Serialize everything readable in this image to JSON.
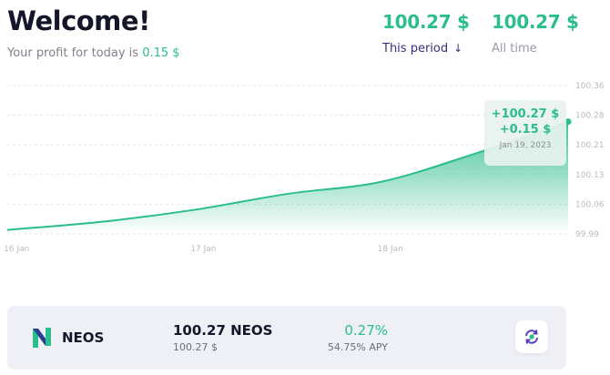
{
  "header": {
    "title": "Welcome!",
    "subtitle_prefix": "Your profit for today is",
    "subtitle_value": "0.15 $"
  },
  "stats": {
    "period_value": "100.27 $",
    "period_label": "This period",
    "period_icon": "arrow-down-icon",
    "alltime_value": "100.27 $",
    "alltime_label": "All time"
  },
  "tooltip": {
    "total": "+100.27 $",
    "delta": "+0.15 $",
    "date": "Jan 19, 2023"
  },
  "chart_data": {
    "type": "area",
    "x": [
      "16 Jan",
      "16.5 Jan",
      "17 Jan",
      "17.5 Jan",
      "18 Jan",
      "18.5 Jan",
      "19 Jan"
    ],
    "y": [
      100.0,
      100.02,
      100.05,
      100.09,
      100.12,
      100.19,
      100.27
    ],
    "xlabels": [
      "16 Jan",
      "17 Jan",
      "18 Jan"
    ],
    "yticks": [
      "100.36",
      "100.28",
      "100.21",
      "100.13",
      "100.06",
      "99.99"
    ],
    "ylim": [
      99.99,
      100.36
    ],
    "grid": true,
    "color": "#2bbd8b"
  },
  "asset": {
    "name": "NEOS",
    "logo_icon": "neos-logo-icon",
    "balance": "100.27 NEOS",
    "balance_usd": "100.27 $",
    "change": "0.27%",
    "apy": "54.75% APY",
    "action_icon": "swap-icon"
  },
  "colors": {
    "accent": "#2bbd8b",
    "primary_dark": "#3a2f7e",
    "card_bg": "#eef0f6"
  }
}
